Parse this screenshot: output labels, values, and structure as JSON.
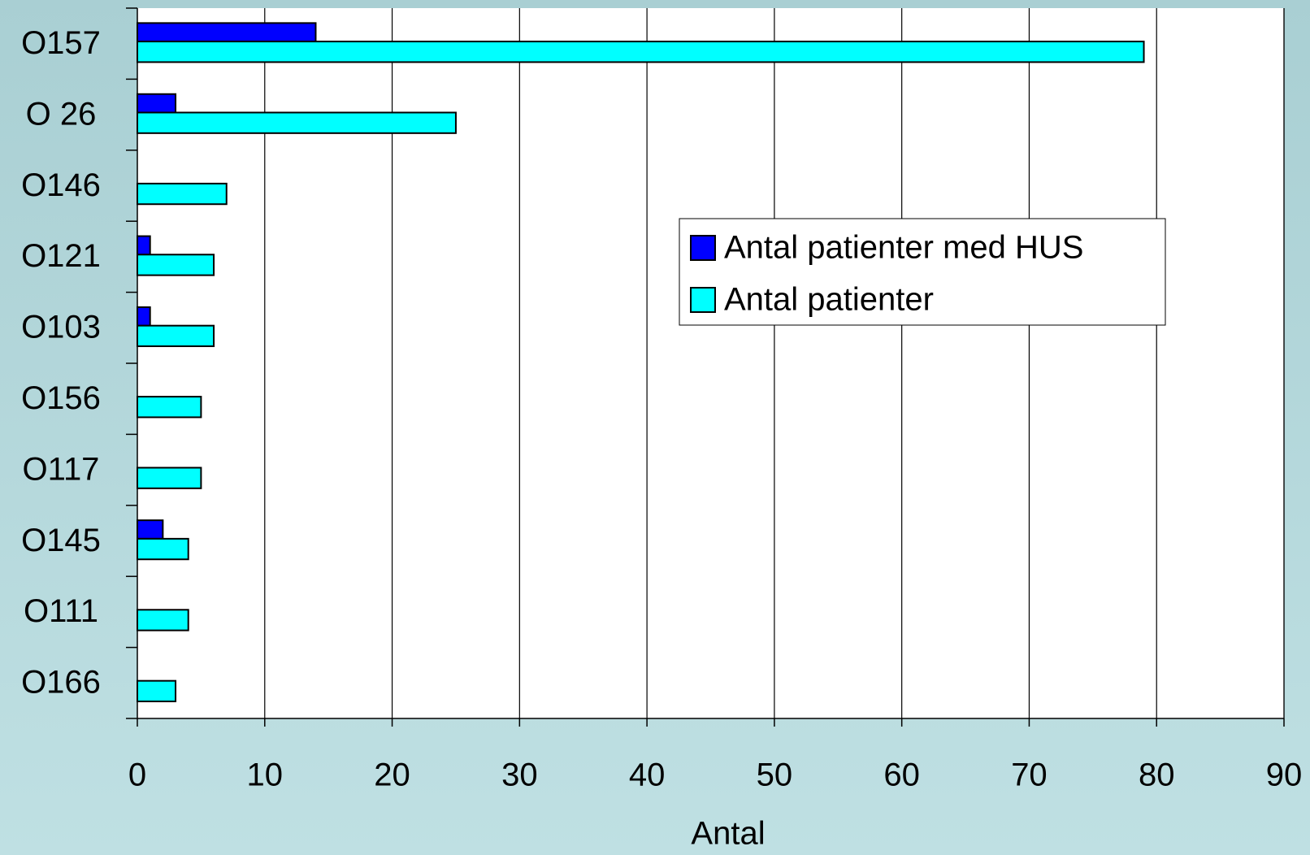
{
  "chart_data": {
    "type": "barh",
    "x_label": "Antal",
    "categories": [
      "O157",
      "O 26",
      "O146",
      "O121",
      "O103",
      "O156",
      "O117",
      "O145",
      "O111",
      "O166"
    ],
    "series": [
      {
        "name": "Antal patienter med HUS",
        "color": "#0000ff",
        "values": [
          14,
          3,
          0,
          1,
          1,
          0,
          0,
          2,
          0,
          0
        ]
      },
      {
        "name": "Antal patienter",
        "color": "#00ffff",
        "values": [
          79,
          25,
          7,
          6,
          6,
          5,
          5,
          4,
          4,
          3
        ]
      }
    ],
    "xlim": [
      0,
      90
    ],
    "xticks": [
      0,
      10,
      20,
      30,
      40,
      50,
      60,
      70,
      80,
      90
    ],
    "grid": true,
    "legend": "right"
  }
}
